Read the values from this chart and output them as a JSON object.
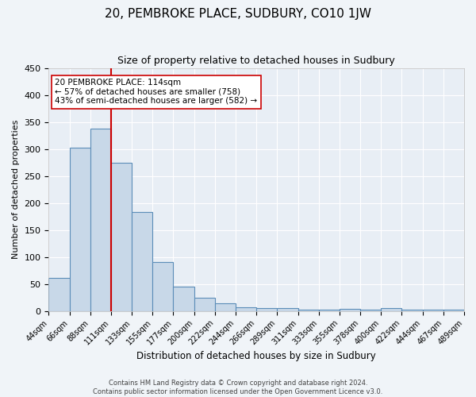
{
  "title": "20, PEMBROKE PLACE, SUDBURY, CO10 1JW",
  "subtitle": "Size of property relative to detached houses in Sudbury",
  "xlabel": "Distribution of detached houses by size in Sudbury",
  "ylabel": "Number of detached properties",
  "bin_edges": [
    "44sqm",
    "66sqm",
    "88sqm",
    "111sqm",
    "133sqm",
    "155sqm",
    "177sqm",
    "200sqm",
    "222sqm",
    "244sqm",
    "266sqm",
    "289sqm",
    "311sqm",
    "333sqm",
    "355sqm",
    "378sqm",
    "400sqm",
    "422sqm",
    "444sqm",
    "467sqm",
    "489sqm"
  ],
  "bar_heights": [
    62,
    303,
    338,
    275,
    184,
    90,
    45,
    24,
    15,
    7,
    5,
    5,
    3,
    3,
    4,
    3,
    5,
    3,
    3,
    3
  ],
  "bar_color": "#c8d8e8",
  "bar_edge_color": "#5b8db8",
  "vline_x": 3.0,
  "vline_color": "#cc0000",
  "annotation_title": "20 PEMBROKE PLACE: 114sqm",
  "annotation_line1": "← 57% of detached houses are smaller (758)",
  "annotation_line2": "43% of semi-detached houses are larger (582) →",
  "annotation_box_color": "#ffffff",
  "annotation_box_edge": "#cc0000",
  "ylim": [
    0,
    450
  ],
  "yticks": [
    0,
    50,
    100,
    150,
    200,
    250,
    300,
    350,
    400,
    450
  ],
  "footer1": "Contains HM Land Registry data © Crown copyright and database right 2024.",
  "footer2": "Contains public sector information licensed under the Open Government Licence v3.0.",
  "bg_color": "#f0f4f8",
  "plot_bg_color": "#e8eef5"
}
